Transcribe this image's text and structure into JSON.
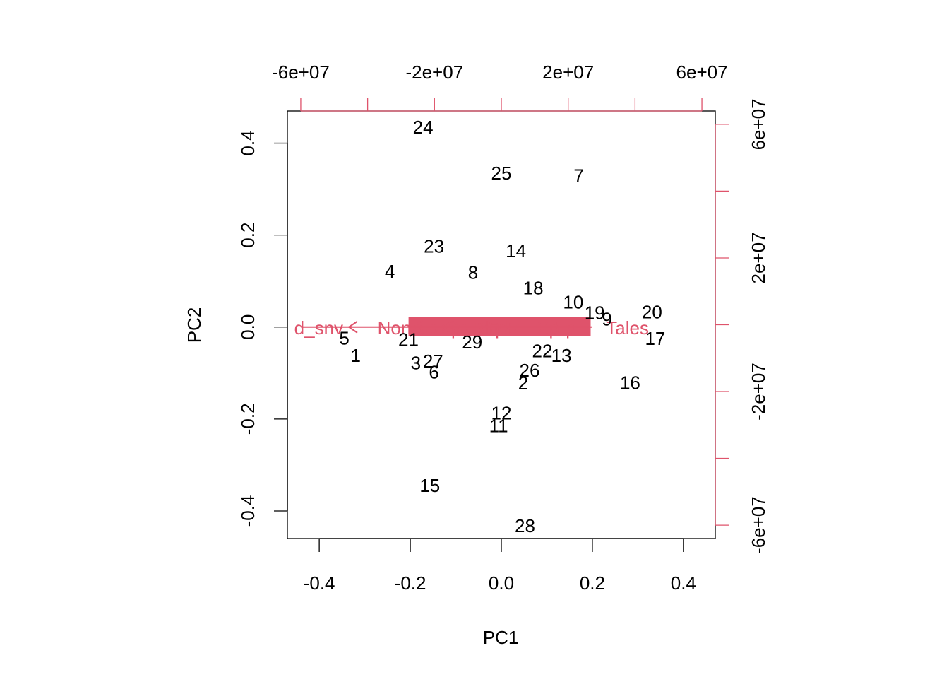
{
  "chart_data": {
    "type": "scatter",
    "subtype": "biplot",
    "title": "",
    "xlabel": "PC1",
    "ylabel": "PC2",
    "xlim": [
      -0.47,
      0.47
    ],
    "ylim": [
      -0.46,
      0.47
    ],
    "x_ticks": [
      -0.4,
      -0.2,
      0.0,
      0.2,
      0.4
    ],
    "x_tick_labels": [
      "-0.4",
      "-0.2",
      "0.0",
      "0.2",
      "0.4"
    ],
    "y_ticks": [
      -0.4,
      -0.2,
      0.0,
      0.2,
      0.4
    ],
    "y_tick_labels": [
      "-0.4",
      "-0.2",
      "0.0",
      "0.2",
      "0.4"
    ],
    "top_axis": {
      "range": [
        -64000000.0,
        64000000.0
      ],
      "ticks": [
        -60000000.0,
        -40000000.0,
        -20000000.0,
        0,
        20000000.0,
        40000000.0,
        60000000.0
      ],
      "labels": [
        {
          "value": -60000000.0,
          "text": "-6e+07"
        },
        {
          "value": -20000000.0,
          "text": "-2e+07"
        },
        {
          "value": 20000000.0,
          "text": "2e+07"
        },
        {
          "value": 60000000.0,
          "text": "6e+07"
        }
      ],
      "color": "#df536b"
    },
    "right_axis": {
      "range": [
        -64000000.0,
        64000000.0
      ],
      "ticks": [
        -60000000.0,
        -40000000.0,
        -20000000.0,
        0,
        20000000.0,
        40000000.0,
        60000000.0
      ],
      "labels": [
        {
          "value": -60000000.0,
          "text": "-6e+07"
        },
        {
          "value": -20000000.0,
          "text": "-2e+07"
        },
        {
          "value": 20000000.0,
          "text": "2e+07"
        },
        {
          "value": 60000000.0,
          "text": "6e+07"
        }
      ],
      "color": "#df536b"
    },
    "observations": [
      {
        "label": "1",
        "x": -0.32,
        "y": -0.062
      },
      {
        "label": "2",
        "x": 0.048,
        "y": -0.122
      },
      {
        "label": "3",
        "x": -0.188,
        "y": -0.078
      },
      {
        "label": "4",
        "x": -0.245,
        "y": 0.121
      },
      {
        "label": "5",
        "x": -0.345,
        "y": -0.024
      },
      {
        "label": "6",
        "x": -0.148,
        "y": -0.098
      },
      {
        "label": "7",
        "x": 0.17,
        "y": 0.329
      },
      {
        "label": "8",
        "x": -0.062,
        "y": 0.119
      },
      {
        "label": "9",
        "x": 0.232,
        "y": 0.017
      },
      {
        "label": "10",
        "x": 0.158,
        "y": 0.054
      },
      {
        "label": "11",
        "x": -0.006,
        "y": -0.215
      },
      {
        "label": "12",
        "x": 0.0,
        "y": -0.187
      },
      {
        "label": "13",
        "x": 0.132,
        "y": -0.062
      },
      {
        "label": "14",
        "x": 0.032,
        "y": 0.166
      },
      {
        "label": "15",
        "x": -0.157,
        "y": -0.345
      },
      {
        "label": "16",
        "x": 0.283,
        "y": -0.121
      },
      {
        "label": "17",
        "x": 0.338,
        "y": -0.025
      },
      {
        "label": "18",
        "x": 0.07,
        "y": 0.085
      },
      {
        "label": "19",
        "x": 0.205,
        "y": 0.031
      },
      {
        "label": "20",
        "x": 0.331,
        "y": 0.033
      },
      {
        "label": "21",
        "x": -0.204,
        "y": -0.027
      },
      {
        "label": "22",
        "x": 0.09,
        "y": -0.052
      },
      {
        "label": "23",
        "x": -0.148,
        "y": 0.176
      },
      {
        "label": "24",
        "x": -0.172,
        "y": 0.435
      },
      {
        "label": "25",
        "x": 0.0,
        "y": 0.335
      },
      {
        "label": "26",
        "x": 0.062,
        "y": -0.094
      },
      {
        "label": "27",
        "x": -0.15,
        "y": -0.074
      },
      {
        "label": "28",
        "x": 0.052,
        "y": -0.432
      },
      {
        "label": "29",
        "x": -0.064,
        "y": -0.033
      }
    ],
    "loadings": {
      "color": "#df536b",
      "visible_labels": [
        {
          "text": "d_snv",
          "x": -0.455,
          "y": 0.0
        },
        {
          "text": "Non",
          "x": -0.272,
          "y": 0.0
        },
        {
          "text": "Tales",
          "x": 0.23,
          "y": 0.0
        }
      ],
      "clustered_band": {
        "x_from": -0.21,
        "x_to": 0.19,
        "y": 0.0
      }
    }
  }
}
